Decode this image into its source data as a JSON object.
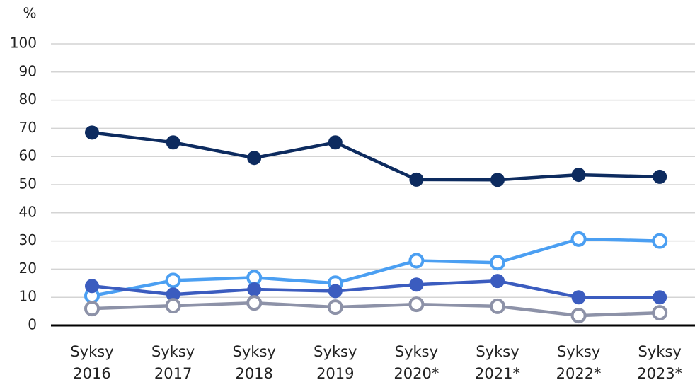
{
  "chart_data": {
    "type": "line",
    "y_label": "%",
    "categories": [
      "Syksy 2016",
      "Syksy 2017",
      "Syksy 2018",
      "Syksy 2019",
      "Syksy 2020*",
      "Syksy 2021*",
      "Syksy 2022*",
      "Syksy 2023*"
    ],
    "series": [
      {
        "color": "#0d2b5f",
        "marker": "filled",
        "values": [
          68.5,
          65,
          59.5,
          65,
          51.8,
          51.7,
          53.5,
          52.8
        ]
      },
      {
        "color": "#4b9ff2",
        "marker": "open",
        "values": [
          10.5,
          16,
          17,
          15,
          23,
          22.3,
          30.7,
          30
        ]
      },
      {
        "color": "#3b5cbf",
        "marker": "filled",
        "values": [
          14,
          11,
          12.8,
          12.2,
          14.5,
          15.8,
          10,
          10
        ]
      },
      {
        "color": "#8d92a8",
        "marker": "open",
        "values": [
          6,
          7,
          8,
          6.5,
          7.5,
          6.8,
          3.5,
          4.5
        ]
      }
    ],
    "ylim": [
      0,
      100
    ],
    "yticks": [
      0,
      10,
      20,
      30,
      40,
      50,
      60,
      70,
      80,
      90,
      100
    ],
    "grid": true
  }
}
